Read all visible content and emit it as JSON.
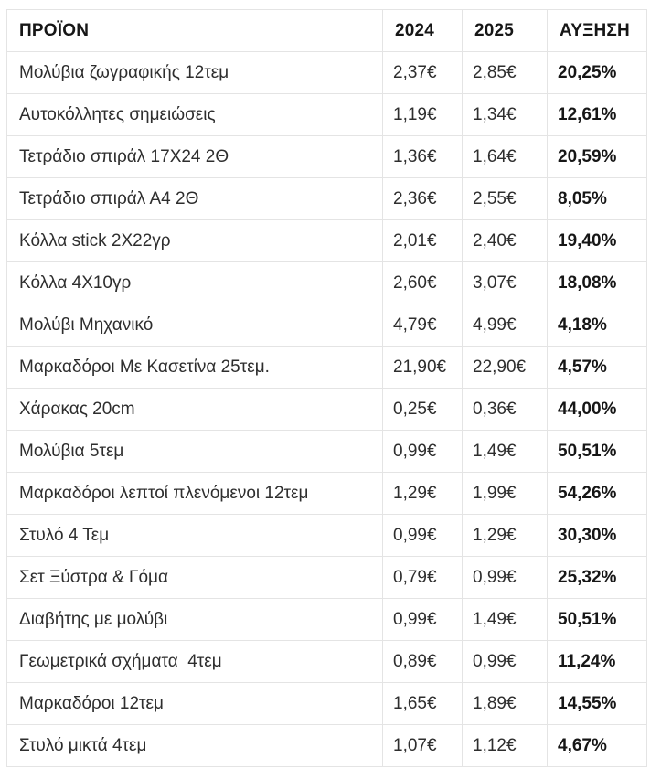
{
  "colors": {
    "bg": "#ffffff",
    "border": "#e4e4e4",
    "text": "#2e2e2e",
    "text-strong": "#161616"
  },
  "table": {
    "columns": [
      "ΠΡΟΪΟΝ",
      "2024",
      "2025",
      "ΑΥΞΗΣΗ"
    ],
    "rows": [
      {
        "product": "Μολύβια ζωγραφικής 12τεμ",
        "price_2024": "2,37€",
        "price_2025": "2,85€",
        "increase": "20,25%"
      },
      {
        "product": "Αυτοκόλλητες σημειώσεις",
        "price_2024": "1,19€",
        "price_2025": "1,34€",
        "increase": "12,61%"
      },
      {
        "product": "Τετράδιο σπιράλ 17X24 2Θ",
        "price_2024": "1,36€",
        "price_2025": "1,64€",
        "increase": "20,59%"
      },
      {
        "product": "Τετράδιο σπιράλ Α4 2Θ",
        "price_2024": "2,36€",
        "price_2025": "2,55€",
        "increase": "8,05%"
      },
      {
        "product": "Κόλλα stick 2X22γρ",
        "price_2024": "2,01€",
        "price_2025": "2,40€",
        "increase": "19,40%"
      },
      {
        "product": "Κόλλα 4X10γρ",
        "price_2024": "2,60€",
        "price_2025": "3,07€",
        "increase": "18,08%"
      },
      {
        "product": "Μολύβι Μηχανικό",
        "price_2024": "4,79€",
        "price_2025": "4,99€",
        "increase": "4,18%"
      },
      {
        "product": "Μαρκαδόροι Με Κασετίνα 25τεμ.",
        "price_2024": "21,90€",
        "price_2025": "22,90€",
        "increase": "4,57%"
      },
      {
        "product": "Χάρακας 20cm",
        "price_2024": "0,25€",
        "price_2025": "0,36€",
        "increase": "44,00%"
      },
      {
        "product": "Μολύβια 5τεμ",
        "price_2024": "0,99€",
        "price_2025": "1,49€",
        "increase": "50,51%"
      },
      {
        "product": "Μαρκαδόροι λεπτοί πλενόμενοι 12τεμ",
        "price_2024": "1,29€",
        "price_2025": "1,99€",
        "increase": "54,26%"
      },
      {
        "product": "Στυλό 4 Τεμ",
        "price_2024": "0,99€",
        "price_2025": "1,29€",
        "increase": "30,30%"
      },
      {
        "product": "Σετ Ξύστρα & Γόμα",
        "price_2024": "0,79€",
        "price_2025": "0,99€",
        "increase": "25,32%"
      },
      {
        "product": "Διαβήτης με μολύβι",
        "price_2024": "0,99€",
        "price_2025": "1,49€",
        "increase": "50,51%"
      },
      {
        "product": "Γεωμετρικά σχήματα  4τεμ",
        "price_2024": "0,89€",
        "price_2025": "0,99€",
        "increase": "11,24%"
      },
      {
        "product": "Μαρκαδόροι 12τεμ",
        "price_2024": "1,65€",
        "price_2025": "1,89€",
        "increase": "14,55%"
      },
      {
        "product": "Στυλό μικτά 4τεμ",
        "price_2024": "1,07€",
        "price_2025": "1,12€",
        "increase": "4,67%"
      }
    ]
  }
}
